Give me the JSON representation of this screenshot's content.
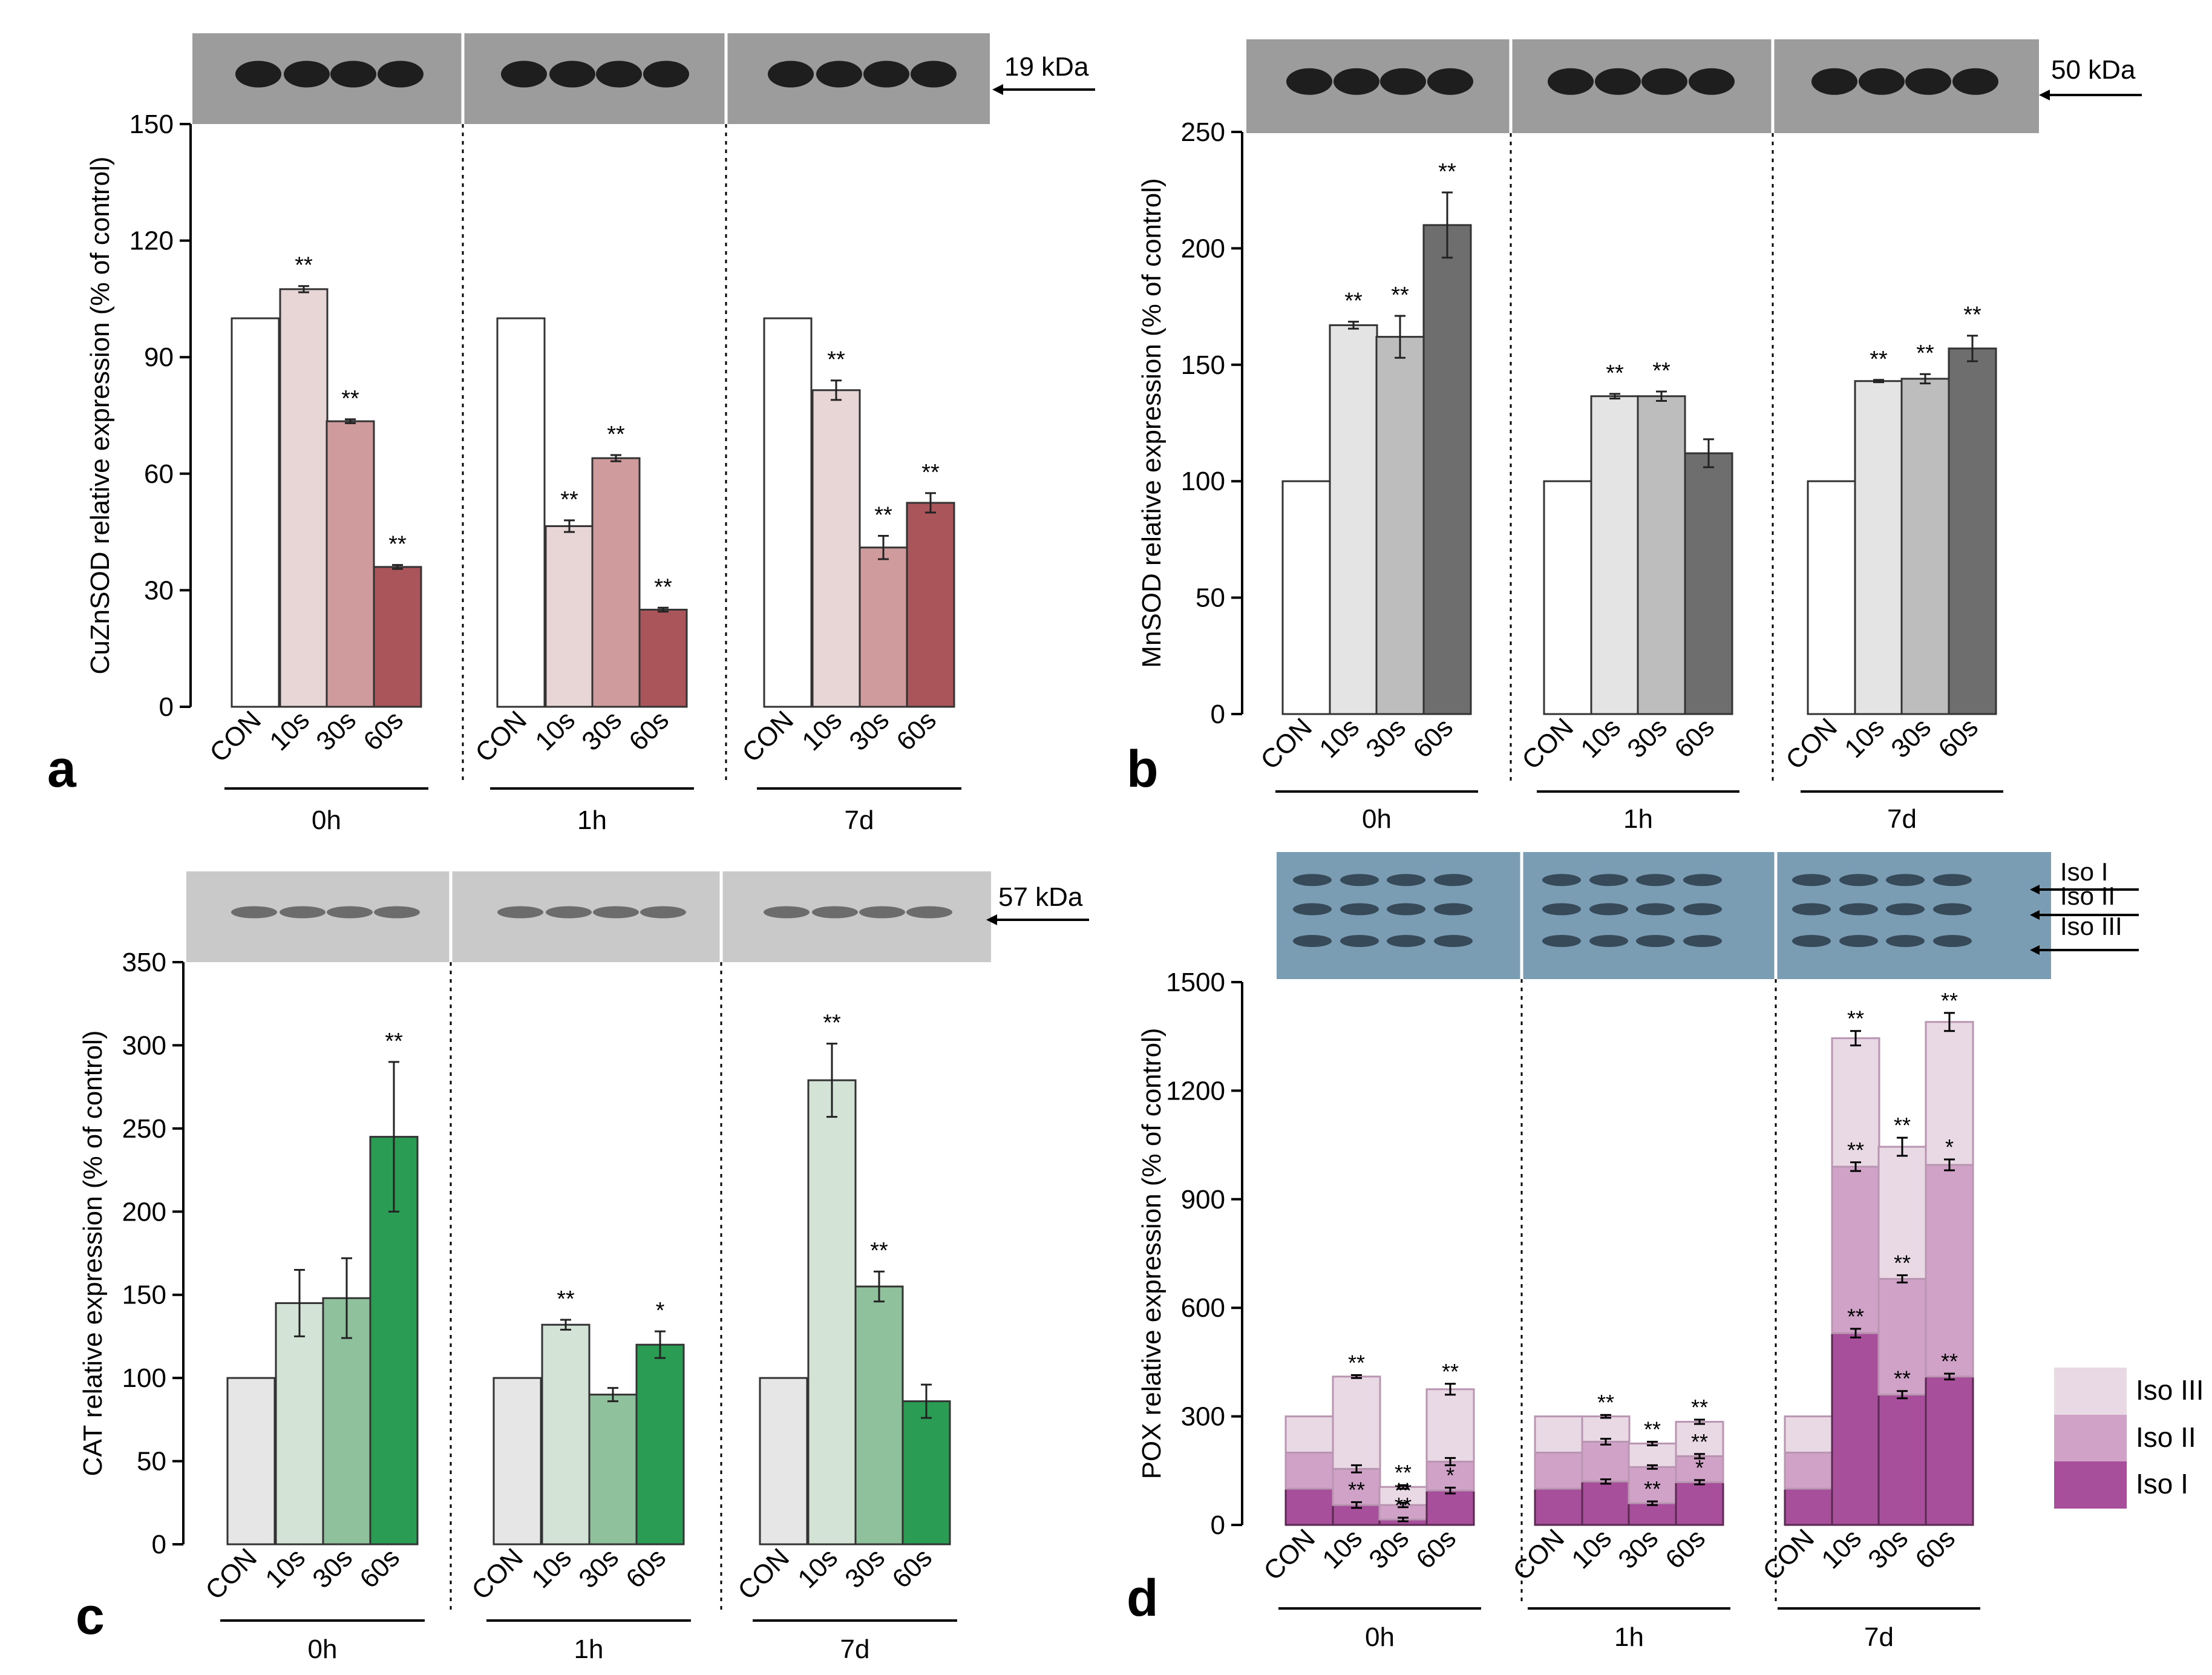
{
  "chart_data": [
    {
      "id": "a",
      "type": "bar",
      "panel_label": "a",
      "ylabel": "CuZnSOD relative expression (% of control)",
      "ylim": [
        0,
        150
      ],
      "yticks": [
        "0",
        "30",
        "60",
        "90",
        "120",
        "150"
      ],
      "ytick_values": [
        0,
        30,
        60,
        90,
        120,
        150
      ],
      "groups": [
        {
          "name": "0h",
          "categories": [
            "CON",
            "10s",
            "30s",
            "60s"
          ],
          "values": [
            100,
            107.5,
            73.5,
            36
          ],
          "errors": [
            0,
            0.8,
            0.5,
            0.5
          ],
          "sig": [
            "",
            "**",
            "**",
            "**"
          ]
        },
        {
          "name": "1h",
          "categories": [
            "CON",
            "10s",
            "30s",
            "60s"
          ],
          "values": [
            100,
            46.5,
            64,
            25
          ],
          "errors": [
            0,
            1.5,
            0.8,
            0.5
          ],
          "sig": [
            "",
            "**",
            "**",
            "**"
          ]
        },
        {
          "name": "7d",
          "categories": [
            "CON",
            "10s",
            "30s",
            "60s"
          ],
          "values": [
            100,
            81.5,
            41,
            52.5
          ],
          "errors": [
            0,
            2.5,
            3,
            2.5
          ],
          "sig": [
            "",
            "**",
            "**",
            "**"
          ]
        }
      ],
      "colors": [
        "#ffffff",
        "#e8d5d6",
        "#cf9b9c",
        "#a9555a"
      ],
      "blot_label": "19 kDa"
    },
    {
      "id": "b",
      "type": "bar",
      "panel_label": "b",
      "ylabel": "MnSOD relative expression (% of control)",
      "ylim": [
        0,
        250
      ],
      "yticks": [
        "0",
        "50",
        "100",
        "150",
        "200",
        "250"
      ],
      "ytick_values": [
        0,
        50,
        100,
        150,
        200,
        250
      ],
      "groups": [
        {
          "name": "0h",
          "categories": [
            "CON",
            "10s",
            "30s",
            "60s"
          ],
          "values": [
            100,
            167,
            162,
            210
          ],
          "errors": [
            0,
            1.5,
            9,
            14
          ],
          "sig": [
            "",
            "**",
            "**",
            "**"
          ]
        },
        {
          "name": "1h",
          "categories": [
            "CON",
            "10s",
            "30s",
            "60s"
          ],
          "values": [
            100,
            136.5,
            136.5,
            112
          ],
          "errors": [
            0,
            1,
            2,
            6
          ],
          "sig": [
            "",
            "**",
            "**",
            ""
          ]
        },
        {
          "name": "7d",
          "categories": [
            "CON",
            "10s",
            "30s",
            "60s"
          ],
          "values": [
            100,
            143,
            144,
            157
          ],
          "errors": [
            0,
            0.5,
            2,
            5.5
          ],
          "sig": [
            "",
            "**",
            "**",
            "**"
          ]
        }
      ],
      "colors": [
        "#ffffff",
        "#e4e4e4",
        "#bdbdbd",
        "#6e6e6e"
      ],
      "blot_label": "50 kDa"
    },
    {
      "id": "c",
      "type": "bar",
      "panel_label": "c",
      "ylabel": "CAT relative expression (% of control)",
      "ylim": [
        0,
        350
      ],
      "yticks": [
        "0",
        "50",
        "100",
        "150",
        "200",
        "250",
        "300",
        "350"
      ],
      "ytick_values": [
        0,
        50,
        100,
        150,
        200,
        250,
        300,
        350
      ],
      "groups": [
        {
          "name": "0h",
          "categories": [
            "CON",
            "10s",
            "30s",
            "60s"
          ],
          "values": [
            100,
            145,
            148,
            245
          ],
          "errors": [
            0,
            20,
            24,
            45
          ],
          "sig": [
            "",
            "",
            "",
            "**"
          ]
        },
        {
          "name": "1h",
          "categories": [
            "CON",
            "10s",
            "30s",
            "60s"
          ],
          "values": [
            100,
            132,
            90,
            120
          ],
          "errors": [
            0,
            3,
            4,
            8
          ],
          "sig": [
            "",
            "**",
            "",
            "*"
          ]
        },
        {
          "name": "7d",
          "categories": [
            "CON",
            "10s",
            "30s",
            "60s"
          ],
          "values": [
            100,
            279,
            155,
            86
          ],
          "errors": [
            0,
            22,
            9,
            10
          ],
          "sig": [
            "",
            "**",
            "**",
            ""
          ]
        }
      ],
      "colors": [
        "#e6e6e6",
        "#d3e4d7",
        "#8fc19d",
        "#2b9c53"
      ],
      "blot_label": "57 kDa"
    },
    {
      "id": "d",
      "type": "bar",
      "stacked": true,
      "panel_label": "d",
      "ylabel": "POX relative expression (% of control)",
      "ylim": [
        0,
        1500
      ],
      "yticks": [
        "0",
        "300",
        "600",
        "900",
        "1200",
        "1500"
      ],
      "ytick_values": [
        0,
        300,
        600,
        900,
        1200,
        1500
      ],
      "series": [
        {
          "name": "Iso III",
          "color": "#e8d9e5"
        },
        {
          "name": "Iso II",
          "color": "#d1a2c8"
        },
        {
          "name": "Iso I",
          "color": "#a84f9b"
        }
      ],
      "groups": [
        {
          "name": "0h",
          "categories": [
            "CON",
            "10s",
            "30s",
            "60s"
          ],
          "cumulative": [
            [
              100,
              200,
              300
            ],
            [
              55,
              155,
              410
            ],
            [
              15,
              55,
              105
            ],
            [
              95,
              175,
              375
            ]
          ],
          "errors": [
            [
              0,
              0,
              0
            ],
            [
              8,
              10,
              4
            ],
            [
              5,
              6,
              5
            ],
            [
              8,
              10,
              15
            ]
          ],
          "sig": [
            [
              "",
              "",
              ""
            ],
            [
              "**",
              "",
              "**"
            ],
            [
              "**",
              "**",
              "**"
            ],
            [
              "*",
              "",
              "**"
            ]
          ]
        },
        {
          "name": "1h",
          "categories": [
            "CON",
            "10s",
            "30s",
            "60s"
          ],
          "cumulative": [
            [
              100,
              200,
              300
            ],
            [
              120,
              230,
              300
            ],
            [
              60,
              160,
              225
            ],
            [
              118,
              190,
              285
            ]
          ],
          "errors": [
            [
              0,
              0,
              0
            ],
            [
              6,
              8,
              4
            ],
            [
              5,
              5,
              5
            ],
            [
              6,
              6,
              6
            ]
          ],
          "sig": [
            [
              "",
              "",
              ""
            ],
            [
              "",
              "",
              "**"
            ],
            [
              "**",
              "",
              "**"
            ],
            [
              "*",
              "**",
              "**"
            ]
          ]
        },
        {
          "name": "7d",
          "categories": [
            "CON",
            "10s",
            "30s",
            "60s"
          ],
          "cumulative": [
            [
              100,
              200,
              300
            ],
            [
              530,
              990,
              1345
            ],
            [
              360,
              680,
              1045
            ],
            [
              410,
              995,
              1390
            ]
          ],
          "errors": [
            [
              0,
              0,
              0
            ],
            [
              12,
              12,
              20
            ],
            [
              10,
              10,
              25
            ],
            [
              8,
              15,
              25
            ]
          ],
          "sig": [
            [
              "",
              "",
              ""
            ],
            [
              "**",
              "**",
              "**"
            ],
            [
              "**",
              "**",
              "**"
            ],
            [
              "**",
              "*",
              "**"
            ]
          ]
        }
      ],
      "blot_labels": [
        "Iso I",
        "Iso II",
        "Iso III"
      ]
    }
  ]
}
